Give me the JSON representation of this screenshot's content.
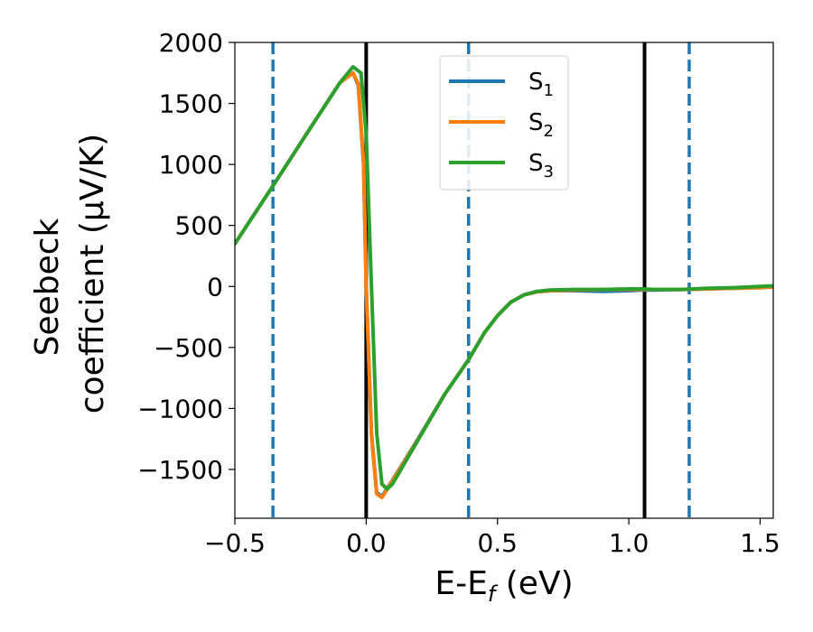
{
  "chart_data": {
    "type": "line",
    "title": "",
    "xlabel_main": "E-E",
    "xlabel_sub": "f",
    "xlabel_unit": " (eV)",
    "ylabel_line1": "Seebeck",
    "ylabel_line2": "coefficient  (μV/K)",
    "xlim": [
      -0.5,
      1.55
    ],
    "ylim": [
      -1900,
      2000
    ],
    "xticks": [
      -0.5,
      0.0,
      0.5,
      1.0,
      1.5
    ],
    "xtick_labels": [
      "−0.5",
      "0.0",
      "0.5",
      "1.0",
      "1.5"
    ],
    "yticks": [
      -1500,
      -1000,
      -500,
      0,
      500,
      1000,
      1500,
      2000
    ],
    "ytick_labels": [
      "−1500",
      "−1000",
      "−500",
      "0",
      "500",
      "1000",
      "1500",
      "2000"
    ],
    "grid": false,
    "legend_position": "top-center",
    "series": [
      {
        "name_main": "S",
        "name_sub": "1",
        "color": "#1f77b4",
        "x": [
          -0.5,
          -0.35,
          -0.2,
          -0.1,
          -0.05,
          -0.03,
          -0.01,
          0.0,
          0.02,
          0.04,
          0.06,
          0.1,
          0.2,
          0.3,
          0.39,
          0.45,
          0.5,
          0.55,
          0.6,
          0.65,
          0.7,
          0.8,
          0.9,
          1.0,
          1.05,
          1.1,
          1.2,
          1.3,
          1.4,
          1.5,
          1.55
        ],
        "y": [
          350,
          840,
          1340,
          1670,
          1750,
          1650,
          1000,
          0,
          -1200,
          -1690,
          -1720,
          -1590,
          -1240,
          -880,
          -600,
          -380,
          -240,
          -130,
          -70,
          -45,
          -35,
          -35,
          -40,
          -35,
          -30,
          -30,
          -25,
          -20,
          -15,
          -10,
          -5
        ]
      },
      {
        "name_main": "S",
        "name_sub": "2",
        "color": "#ff7f0e",
        "x": [
          -0.5,
          -0.35,
          -0.2,
          -0.1,
          -0.05,
          -0.03,
          -0.01,
          0.0,
          0.02,
          0.04,
          0.06,
          0.1,
          0.2,
          0.3,
          0.39,
          0.45,
          0.5,
          0.55,
          0.6,
          0.65,
          0.7,
          0.8,
          0.9,
          1.0,
          1.05,
          1.1,
          1.2,
          1.3,
          1.4,
          1.5,
          1.55
        ],
        "y": [
          350,
          840,
          1340,
          1670,
          1750,
          1660,
          1020,
          0,
          -1220,
          -1700,
          -1730,
          -1595,
          -1245,
          -880,
          -600,
          -380,
          -240,
          -130,
          -70,
          -45,
          -35,
          -30,
          -25,
          -25,
          -25,
          -25,
          -25,
          -20,
          -15,
          -10,
          -5
        ]
      },
      {
        "name_main": "S",
        "name_sub": "3",
        "color": "#2ca02c",
        "x": [
          -0.5,
          -0.35,
          -0.2,
          -0.1,
          -0.05,
          -0.02,
          0.0,
          0.02,
          0.04,
          0.06,
          0.08,
          0.1,
          0.2,
          0.3,
          0.39,
          0.45,
          0.5,
          0.55,
          0.6,
          0.65,
          0.7,
          0.8,
          0.9,
          1.0,
          1.05,
          1.1,
          1.2,
          1.3,
          1.4,
          1.5,
          1.55
        ],
        "y": [
          350,
          840,
          1340,
          1670,
          1800,
          1750,
          1250,
          0,
          -1200,
          -1620,
          -1660,
          -1620,
          -1250,
          -880,
          -600,
          -380,
          -240,
          -130,
          -70,
          -40,
          -30,
          -25,
          -25,
          -20,
          -20,
          -25,
          -25,
          -15,
          -10,
          0,
          5
        ]
      }
    ],
    "vlines": [
      {
        "x": 0.0,
        "style": "solid",
        "color": "#000000"
      },
      {
        "x": 1.06,
        "style": "solid",
        "color": "#000000"
      },
      {
        "x": -0.355,
        "style": "dashed",
        "color": "#1f77b4"
      },
      {
        "x": 0.39,
        "style": "dashed",
        "color": "#1f77b4"
      },
      {
        "x": 1.23,
        "style": "dashed",
        "color": "#1f77b4"
      }
    ]
  }
}
